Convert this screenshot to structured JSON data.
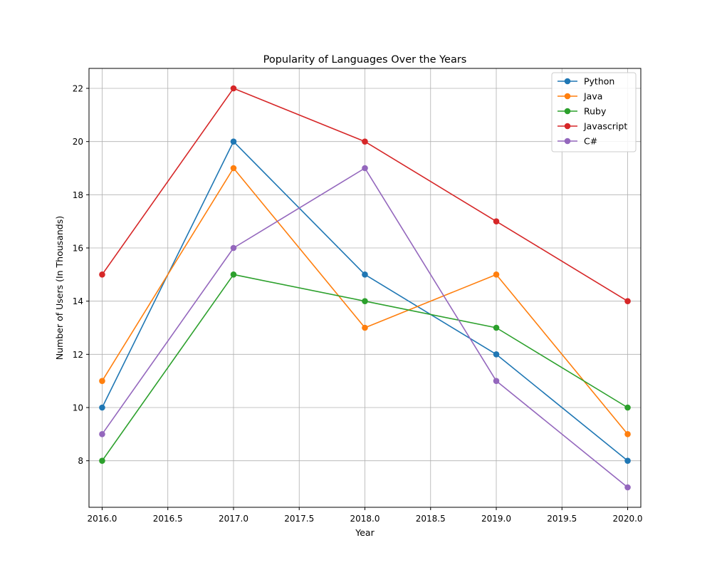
{
  "chart_data": {
    "type": "line",
    "title": "Popularity of Languages Over the Years",
    "xlabel": "Year",
    "ylabel": "Number of Users (In Thousands)",
    "x": [
      2016,
      2017,
      2018,
      2019,
      2020
    ],
    "xlim": [
      2015.9,
      2020.1
    ],
    "ylim": [
      6.25,
      22.75
    ],
    "x_ticks": [
      2016.0,
      2016.5,
      2017.0,
      2017.5,
      2018.0,
      2018.5,
      2019.0,
      2019.5,
      2020.0
    ],
    "x_tick_labels": [
      "2016.0",
      "2016.5",
      "2017.0",
      "2017.5",
      "2018.0",
      "2018.5",
      "2019.0",
      "2019.5",
      "2020.0"
    ],
    "y_ticks": [
      8,
      10,
      12,
      14,
      16,
      18,
      20,
      22
    ],
    "y_tick_labels": [
      "8",
      "10",
      "12",
      "14",
      "16",
      "18",
      "20",
      "22"
    ],
    "grid": true,
    "legend_position": "top-right",
    "marker": "circle",
    "series": [
      {
        "name": "Python",
        "color": "#1f77b4",
        "values": [
          10,
          20,
          15,
          12,
          8
        ]
      },
      {
        "name": "Java",
        "color": "#ff7f0e",
        "values": [
          11,
          19,
          13,
          15,
          9
        ]
      },
      {
        "name": "Ruby",
        "color": "#2ca02c",
        "values": [
          8,
          15,
          14,
          13,
          10
        ]
      },
      {
        "name": "Javascript",
        "color": "#d62728",
        "values": [
          15,
          22,
          20,
          17,
          14
        ]
      },
      {
        "name": "C#",
        "color": "#9467bd",
        "values": [
          9,
          16,
          19,
          11,
          7
        ]
      }
    ]
  }
}
